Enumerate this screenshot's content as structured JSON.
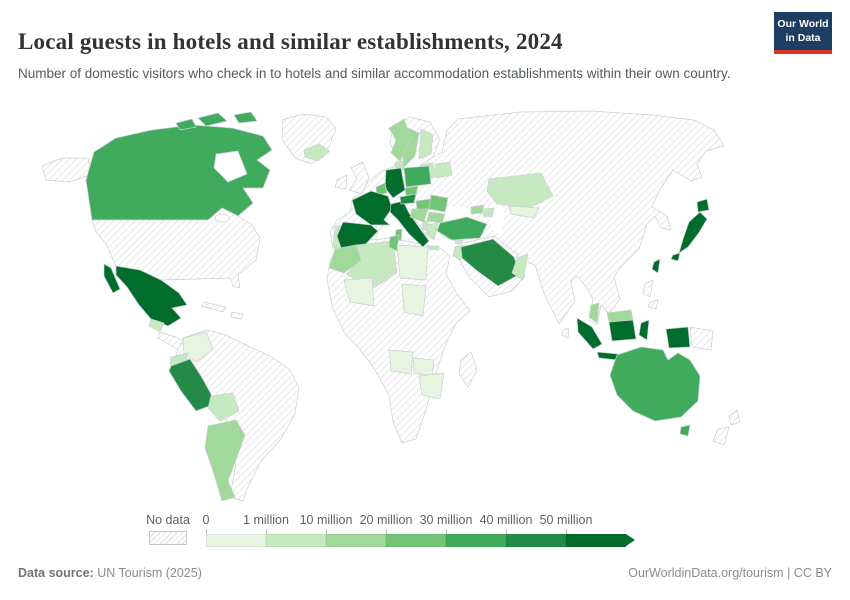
{
  "header": {
    "title": "Local guests in hotels and similar establishments, 2024",
    "subtitle": "Number of domestic visitors who check in to hotels and similar accommodation establishments within their own country.",
    "logo": {
      "line1": "Our World",
      "line2": "in Data",
      "navy": "#1d3d63",
      "red": "#dd352c"
    }
  },
  "legend": {
    "no_data_label": "No data",
    "tick_labels": [
      "0",
      "1 million",
      "10 million",
      "20 million",
      "30 million",
      "40 million",
      "50 million"
    ]
  },
  "footer": {
    "source_label": "Data source:",
    "source_value": " UN Tourism (2025)",
    "right_text": "OurWorldinData.org/tourism | CC BY"
  },
  "map": {
    "ocean_color": "#ffffff",
    "country_border_color": "#c9cfd4",
    "no_data_hatch_line_color": "#d9d9d9",
    "fills": {
      "canada": "#41ab5d",
      "mexico": "#006d2c",
      "guatemala": "#c7e9c0",
      "colombia": "#e5f5e0",
      "ecuador": "#c7e9c0",
      "peru": "#238b45",
      "bolivia": "#c7e9c0",
      "argentina": "#a1d99b",
      "iceland": "#c7e9c0",
      "norway": "#a1d99b",
      "sweden": "#a1d99b",
      "finland": "#c7e9c0",
      "denmark": "#c7e9c0",
      "baltics": "#c7e9c0",
      "belarus": "#c7e9c0",
      "poland": "#41ab5d",
      "germany": "#006d2c",
      "benelux": "#74c476",
      "czechia": "#74c476",
      "france": "#006d2c",
      "portugal": "#c7e9c0",
      "spain": "#006d2c",
      "italy": "#006d2c",
      "sicily": "#006d2c",
      "sardinia": "#74c476",
      "austria": "#238b45",
      "hungary": "#74c476",
      "balkans": "#a1d99b",
      "romania": "#74c476",
      "bulgaria": "#a1d99b",
      "albania": "#c7e9c0",
      "greece": "#c7e9c0",
      "crete": "#c7e9c0",
      "turkey": "#41ab5d",
      "georgia": "#a1d99b",
      "azerbaijan": "#c7e9c0",
      "cyprus": "#c7e9c0",
      "israel-jordan": "#c7e9c0",
      "saudi-arabia": "#238b45",
      "oman": "#c7e9c0",
      "morocco": "#a1d99b",
      "algeria": "#c7e9c0",
      "tunisia": "#74c476",
      "libya": "#e5f5e0",
      "mali": "#e5f5e0",
      "chad": "#e5f5e0",
      "angola": "#e5f5e0",
      "zambia": "#e5f5e0",
      "zimbabwe-mozambique": "#e5f5e0",
      "kazakhstan": "#c7e9c0",
      "kyrgyzstan-uzbekistan": "#e5f5e0",
      "japan": "#006d2c",
      "taiwan": "#006d2c",
      "malaysia-peninsula": "#a1d99b",
      "malaysia-borneo": "#a1d99b",
      "indonesia": "#006d2c",
      "australia": "#41ab5d",
      "tasmania": "#41ab5d"
    }
  },
  "chart_data": {
    "type": "choropleth_map",
    "title": "Local guests in hotels and similar establishments, 2024",
    "subtitle": "Number of domestic visitors who check in to hotels and similar accommodation establishments within their own country.",
    "unit": "domestic hotel guests per year",
    "legend_position": "bottom",
    "color_scale": {
      "scheme": "Greens",
      "bins": [
        {
          "range": "0 - 1 million",
          "color": "#e5f5e0"
        },
        {
          "range": "1 - 10 million",
          "color": "#c7e9c0"
        },
        {
          "range": "10 - 20 million",
          "color": "#a1d99b"
        },
        {
          "range": "20 - 30 million",
          "color": "#74c476"
        },
        {
          "range": "30 - 40 million",
          "color": "#41ab5d"
        },
        {
          "range": "40 - 50 million",
          "color": "#238b45"
        },
        {
          "range": "50 million +",
          "color": "#006d2c"
        }
      ],
      "no_data": {
        "label": "No data",
        "pattern": "diagonal-hatch"
      }
    },
    "countries": [
      {
        "name": "Mexico",
        "bin": "50 million +"
      },
      {
        "name": "Spain",
        "bin": "50 million +"
      },
      {
        "name": "France",
        "bin": "50 million +"
      },
      {
        "name": "Germany",
        "bin": "50 million +"
      },
      {
        "name": "Italy",
        "bin": "50 million +"
      },
      {
        "name": "Japan",
        "bin": "50 million +"
      },
      {
        "name": "Taiwan",
        "bin": "50 million +"
      },
      {
        "name": "Indonesia",
        "bin": "50 million +"
      },
      {
        "name": "Peru",
        "bin": "40 - 50 million"
      },
      {
        "name": "Saudi Arabia",
        "bin": "40 - 50 million"
      },
      {
        "name": "Austria",
        "bin": "40 - 50 million"
      },
      {
        "name": "Canada",
        "bin": "30 - 40 million"
      },
      {
        "name": "Australia",
        "bin": "30 - 40 million"
      },
      {
        "name": "Poland",
        "bin": "30 - 40 million"
      },
      {
        "name": "Turkey",
        "bin": "30 - 40 million"
      },
      {
        "name": "Netherlands",
        "bin": "20 - 30 million"
      },
      {
        "name": "Czechia",
        "bin": "20 - 30 million"
      },
      {
        "name": "Hungary",
        "bin": "20 - 30 million"
      },
      {
        "name": "Romania",
        "bin": "20 - 30 million"
      },
      {
        "name": "Tunisia",
        "bin": "20 - 30 million"
      },
      {
        "name": "Norway",
        "bin": "10 - 20 million"
      },
      {
        "name": "Sweden",
        "bin": "10 - 20 million"
      },
      {
        "name": "Morocco",
        "bin": "10 - 20 million"
      },
      {
        "name": "Malaysia",
        "bin": "10 - 20 million"
      },
      {
        "name": "Argentina",
        "bin": "10 - 20 million"
      },
      {
        "name": "Serbia",
        "bin": "10 - 20 million"
      },
      {
        "name": "Bulgaria",
        "bin": "10 - 20 million"
      },
      {
        "name": "Georgia",
        "bin": "10 - 20 million"
      },
      {
        "name": "Iceland",
        "bin": "1 - 10 million"
      },
      {
        "name": "Finland",
        "bin": "1 - 10 million"
      },
      {
        "name": "Denmark",
        "bin": "1 - 10 million"
      },
      {
        "name": "Portugal",
        "bin": "1 - 10 million"
      },
      {
        "name": "Greece",
        "bin": "1 - 10 million"
      },
      {
        "name": "Belarus",
        "bin": "1 - 10 million"
      },
      {
        "name": "Baltic states",
        "bin": "1 - 10 million"
      },
      {
        "name": "Algeria",
        "bin": "1 - 10 million"
      },
      {
        "name": "Israel",
        "bin": "1 - 10 million"
      },
      {
        "name": "Jordan",
        "bin": "1 - 10 million"
      },
      {
        "name": "Oman",
        "bin": "1 - 10 million"
      },
      {
        "name": "Kazakhstan",
        "bin": "1 - 10 million"
      },
      {
        "name": "Azerbaijan",
        "bin": "1 - 10 million"
      },
      {
        "name": "Ecuador",
        "bin": "1 - 10 million"
      },
      {
        "name": "Guatemala",
        "bin": "1 - 10 million"
      },
      {
        "name": "Bolivia",
        "bin": "1 - 10 million"
      },
      {
        "name": "Colombia",
        "bin": "0 - 1 million"
      },
      {
        "name": "Libya",
        "bin": "0 - 1 million"
      },
      {
        "name": "Mali",
        "bin": "0 - 1 million"
      },
      {
        "name": "Chad",
        "bin": "0 - 1 million"
      },
      {
        "name": "Angola",
        "bin": "0 - 1 million"
      },
      {
        "name": "Zambia",
        "bin": "0 - 1 million"
      },
      {
        "name": "Zimbabwe",
        "bin": "0 - 1 million"
      },
      {
        "name": "Mozambique",
        "bin": "0 - 1 million"
      },
      {
        "name": "Kyrgyzstan",
        "bin": "0 - 1 million"
      },
      {
        "name": "Uzbekistan",
        "bin": "0 - 1 million"
      }
    ],
    "no_data_countries": [
      "United States",
      "Brazil",
      "Chile",
      "Venezuela",
      "Greenland",
      "United Kingdom",
      "Ireland",
      "Ukraine",
      "Russia",
      "China",
      "Mongolia",
      "India",
      "Pakistan",
      "Iran",
      "Iraq",
      "Egypt",
      "Sudan",
      "Ethiopia",
      "Nigeria",
      "South Africa",
      "Madagascar",
      "Thailand",
      "Vietnam",
      "Myanmar",
      "Philippines",
      "South Korea",
      "Papua New Guinea",
      "New Zealand",
      "Cuba",
      "Yemen"
    ]
  }
}
